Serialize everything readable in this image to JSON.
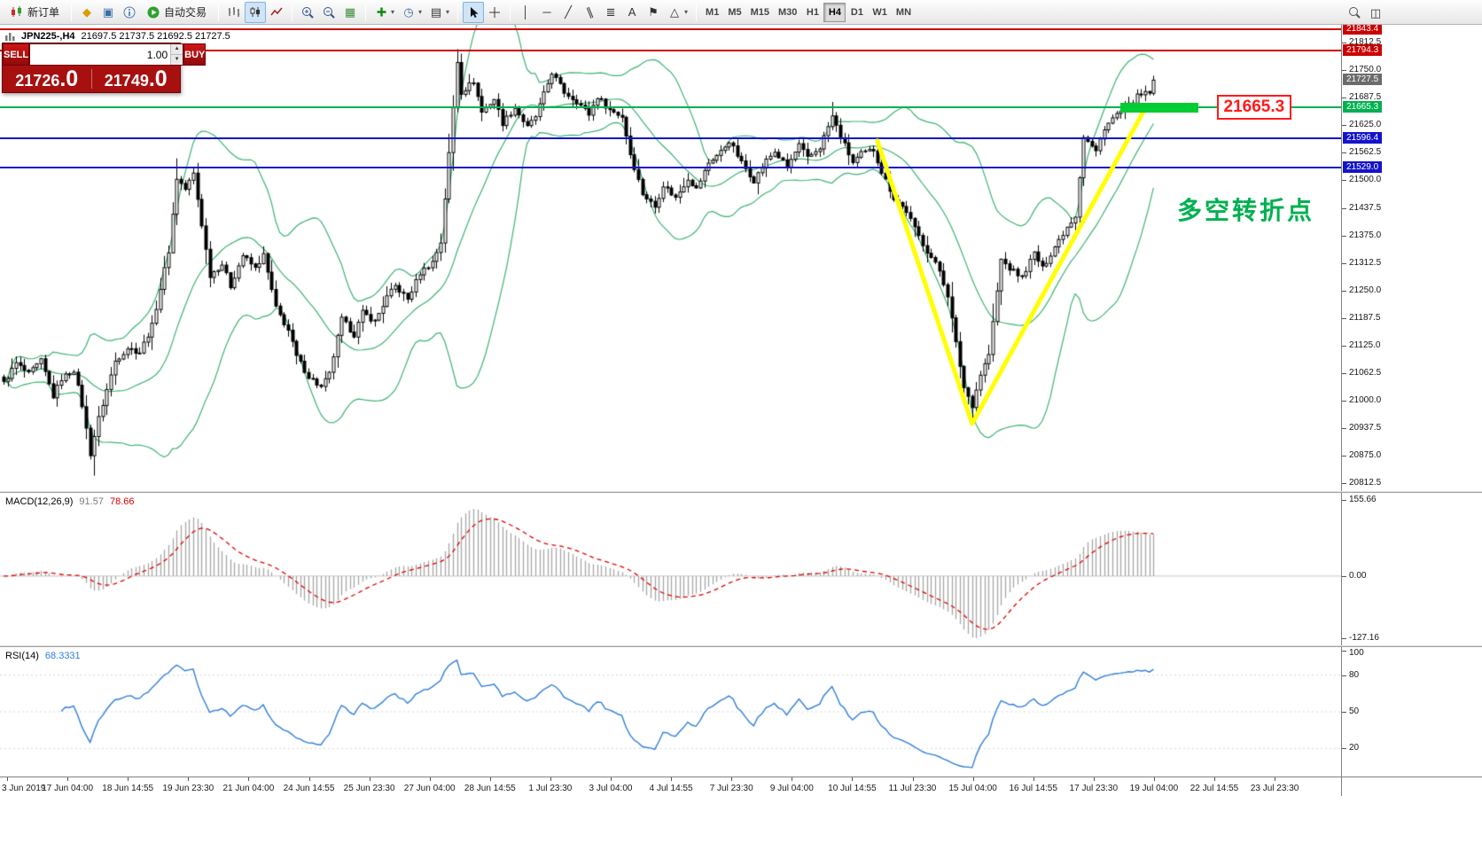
{
  "toolbar": {
    "new_order_label": "新订单",
    "autotrading_label": "自动交易",
    "timeframes": [
      "M1",
      "M5",
      "M15",
      "M30",
      "H1",
      "H4",
      "D1",
      "W1",
      "MN"
    ],
    "active_timeframe": "H4",
    "icons": {
      "metaquotes": "◆",
      "data_window": "▣",
      "navigator": "◫",
      "grid": "▦",
      "periods": "◷",
      "templates": "▤",
      "vline": "│",
      "hline": "─",
      "trendline": "╱",
      "channel": "∥",
      "fibonacci": "≣",
      "text_tool": "A",
      "label_tool": "⚑",
      "shapes": "△",
      "caret": "▾"
    }
  },
  "chart": {
    "symbol_header": {
      "symbol": "JPN225-,H4",
      "ohlc": "21697.5 21737.5 21692.5 21727.5"
    },
    "trade_panel": {
      "sell_label": "SELL",
      "buy_label": "BUY",
      "volume": "1.00",
      "sell_price_main": "21726",
      "sell_price_frac": ".0",
      "buy_price_main": "21749",
      "buy_price_frac": ".0"
    },
    "annotations": {
      "price_label": "21665.3",
      "price_label_color": "#ff1a1a",
      "note": "多空转折点",
      "note_color": "#00b050"
    }
  },
  "indicators": {
    "macd": {
      "name": "MACD(12,26,9)",
      "value_main": "91.57",
      "value_signal": "78.66"
    },
    "rsi": {
      "name": "RSI(14)",
      "value": "68.3331"
    }
  },
  "chart_data": {
    "type": "candlestick",
    "symbol": "JPN225-",
    "timeframe": "H4",
    "candle_count": 280,
    "last_candle": {
      "open": 21697.5,
      "high": 21737.5,
      "low": 21692.5,
      "close": 21727.5
    },
    "price_axis": {
      "top": 21853.0,
      "bottom": 20795.0,
      "ticks": [
        21812.5,
        21750.0,
        21687.5,
        21625.0,
        21562.5,
        21500.0,
        21437.5,
        21375.0,
        21312.5,
        21250.0,
        21187.5,
        21125.0,
        21062.5,
        21000.0,
        20937.5,
        20875.0,
        20812.5
      ]
    },
    "levels": [
      {
        "price": 21843.4,
        "label": "21843.4",
        "color": "#cc0000",
        "line": true
      },
      {
        "price": 21794.3,
        "label": "21794.3",
        "color": "#cc0000",
        "line": true
      },
      {
        "price": 21727.5,
        "label": "21727.5",
        "color": "#6b6b6b",
        "line": false
      },
      {
        "price": 21665.3,
        "label": "21665.3",
        "color": "#00b050",
        "line": true
      },
      {
        "price": 21596.4,
        "label": "21596.4",
        "color": "#1414cc",
        "line": true
      },
      {
        "price": 21529.0,
        "label": "21529.0",
        "color": "#1414cc",
        "line": true
      }
    ],
    "close_anchors": [
      [
        0,
        21040
      ],
      [
        3,
        21085
      ],
      [
        6,
        21060
      ],
      [
        9,
        21090
      ],
      [
        12,
        21010
      ],
      [
        14,
        21050
      ],
      [
        17,
        21070
      ],
      [
        19,
        20990
      ],
      [
        21,
        20880
      ],
      [
        23,
        20960
      ],
      [
        27,
        21090
      ],
      [
        30,
        21120
      ],
      [
        33,
        21110
      ],
      [
        36,
        21170
      ],
      [
        40,
        21340
      ],
      [
        42,
        21505
      ],
      [
        44,
        21480
      ],
      [
        46,
        21515
      ],
      [
        48,
        21400
      ],
      [
        50,
        21285
      ],
      [
        53,
        21310
      ],
      [
        55,
        21260
      ],
      [
        58,
        21330
      ],
      [
        61,
        21300
      ],
      [
        63,
        21330
      ],
      [
        66,
        21210
      ],
      [
        69,
        21160
      ],
      [
        71,
        21100
      ],
      [
        74,
        21055
      ],
      [
        77,
        21030
      ],
      [
        79,
        21060
      ],
      [
        82,
        21185
      ],
      [
        85,
        21150
      ],
      [
        87,
        21200
      ],
      [
        90,
        21180
      ],
      [
        93,
        21235
      ],
      [
        95,
        21260
      ],
      [
        98,
        21230
      ],
      [
        101,
        21290
      ],
      [
        104,
        21315
      ],
      [
        106,
        21360
      ],
      [
        108,
        21560
      ],
      [
        110,
        21770
      ],
      [
        111,
        21700
      ],
      [
        114,
        21725
      ],
      [
        116,
        21655
      ],
      [
        119,
        21685
      ],
      [
        121,
        21630
      ],
      [
        124,
        21665
      ],
      [
        127,
        21620
      ],
      [
        129,
        21645
      ],
      [
        131,
        21695
      ],
      [
        133,
        21745
      ],
      [
        136,
        21700
      ],
      [
        139,
        21680
      ],
      [
        142,
        21650
      ],
      [
        144,
        21690
      ],
      [
        147,
        21660
      ],
      [
        150,
        21645
      ],
      [
        152,
        21560
      ],
      [
        155,
        21470
      ],
      [
        158,
        21440
      ],
      [
        160,
        21490
      ],
      [
        163,
        21460
      ],
      [
        166,
        21505
      ],
      [
        168,
        21480
      ],
      [
        171,
        21540
      ],
      [
        174,
        21565
      ],
      [
        176,
        21590
      ],
      [
        179,
        21540
      ],
      [
        182,
        21500
      ],
      [
        185,
        21545
      ],
      [
        187,
        21565
      ],
      [
        190,
        21530
      ],
      [
        193,
        21580
      ],
      [
        195,
        21550
      ],
      [
        198,
        21575
      ],
      [
        201,
        21645
      ],
      [
        203,
        21600
      ],
      [
        206,
        21540
      ],
      [
        208,
        21560
      ],
      [
        211,
        21570
      ],
      [
        213,
        21520
      ],
      [
        216,
        21460
      ],
      [
        219,
        21430
      ],
      [
        221,
        21390
      ],
      [
        224,
        21340
      ],
      [
        227,
        21295
      ],
      [
        229,
        21240
      ],
      [
        231,
        21130
      ],
      [
        233,
        21030
      ],
      [
        235,
        20990
      ],
      [
        237,
        21060
      ],
      [
        239,
        21105
      ],
      [
        242,
        21320
      ],
      [
        244,
        21300
      ],
      [
        247,
        21280
      ],
      [
        250,
        21335
      ],
      [
        252,
        21300
      ],
      [
        255,
        21350
      ],
      [
        258,
        21395
      ],
      [
        260,
        21420
      ],
      [
        262,
        21600
      ],
      [
        265,
        21565
      ],
      [
        267,
        21620
      ],
      [
        270,
        21650
      ],
      [
        272,
        21660
      ],
      [
        275,
        21690
      ],
      [
        278,
        21700
      ],
      [
        279,
        21727.5
      ]
    ],
    "wick_overrides": {
      "22": {
        "low": 20830
      },
      "42": {
        "high": 21550
      },
      "110": {
        "high": 21798
      },
      "201": {
        "high": 21678
      },
      "235": {
        "low": 20952
      }
    },
    "bollinger": {
      "period": 20,
      "deviation": 2.0,
      "color": "#3cb371"
    },
    "candle_colors": {
      "bull_fill": "#ffffff",
      "bear_fill": "#000000",
      "outline": "#000000"
    },
    "macd": {
      "params": [
        12,
        26,
        9
      ],
      "scale_ticks": [
        155.66,
        0.0,
        -127.16
      ],
      "histogram_color": "#a6a6a6",
      "signal_color": "#e00000"
    },
    "rsi": {
      "period": 14,
      "line_color": "#2f7ed8",
      "levels": [
        80,
        50,
        20
      ],
      "scale_ticks": [
        100,
        80,
        50,
        20
      ]
    },
    "time_labels": [
      "3 Jun 2019",
      "17 Jun 04:00",
      "18 Jun 14:55",
      "19 Jun 23:30",
      "21 Jun 04:00",
      "24 Jun 14:55",
      "25 Jun 23:30",
      "27 Jun 04:00",
      "28 Jun 14:55",
      "1 Jul 23:30",
      "3 Jul 04:00",
      "4 Jul 14:55",
      "7 Jul 23:30",
      "9 Jul 04:00",
      "10 Jul 14:55",
      "11 Jul 23:30",
      "15 Jul 04:00",
      "16 Jul 14:55",
      "17 Jul 23:30",
      "19 Jul 04:00",
      "22 Jul 14:55",
      "23 Jul 23:30"
    ],
    "drawings": {
      "trend_v": {
        "color": "#ffff00",
        "width": 5,
        "points": [
          [
            212,
            21590
          ],
          [
            235,
            20948
          ],
          [
            277,
            21664
          ]
        ]
      },
      "highlight_bar": {
        "price": 21665.3,
        "from_index": 271,
        "to_index": 290,
        "color": "#00cc33",
        "thickness": 11
      }
    }
  }
}
